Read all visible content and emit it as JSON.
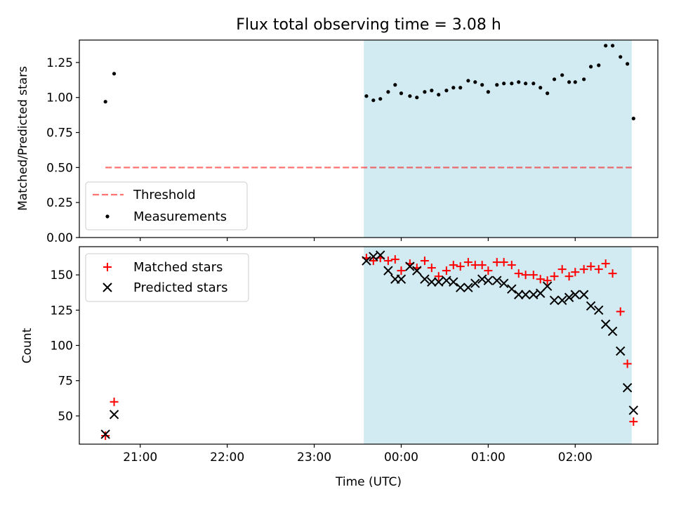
{
  "chart_data": {
    "title": "Flux total observing time = 3.08 h",
    "xlabel": "Time (UTC)",
    "x_unit": "hours (UTC, continuing past midnight: 24 = 00:00 of next day)",
    "xlim": [
      20.3,
      26.95
    ],
    "x_ticks": [
      {
        "value": 21,
        "label": "21:00"
      },
      {
        "value": 22,
        "label": "22:00"
      },
      {
        "value": 23,
        "label": "23:00"
      },
      {
        "value": 24,
        "label": "00:00"
      },
      {
        "value": 25,
        "label": "01:00"
      },
      {
        "value": 26,
        "label": "02:00"
      }
    ],
    "shaded_span": {
      "x0": 23.57,
      "x1": 26.65,
      "color": "#add8e6"
    },
    "panels": [
      {
        "type": "scatter",
        "ylabel": "Matched/Predicted stars",
        "ylim": [
          0.0,
          1.41
        ],
        "yticks": [
          "0.00",
          "0.25",
          "0.50",
          "0.75",
          "1.00",
          "1.25"
        ],
        "ytick_values": [
          0.0,
          0.25,
          0.5,
          0.75,
          1.0,
          1.25
        ],
        "legend_position": "lower-left",
        "series": [
          {
            "name": "Threshold",
            "kind": "dashed-line",
            "color": "#ff0000",
            "x": [
              20.6,
              26.65
            ],
            "y": [
              0.5,
              0.5
            ]
          },
          {
            "name": "Measurements",
            "kind": "dot",
            "color": "#000000",
            "x": [
              20.6,
              20.7,
              23.6,
              23.68,
              23.76,
              23.85,
              23.93,
              24.0,
              24.1,
              24.18,
              24.27,
              24.35,
              24.43,
              24.52,
              24.6,
              24.68,
              24.77,
              24.85,
              24.93,
              25.0,
              25.1,
              25.18,
              25.27,
              25.35,
              25.43,
              25.52,
              25.6,
              25.68,
              25.76,
              25.85,
              25.93,
              26.0,
              26.1,
              26.18,
              26.27,
              26.35,
              26.43,
              26.52,
              26.6,
              26.67
            ],
            "y": [
              0.97,
              1.17,
              1.01,
              0.98,
              0.99,
              1.04,
              1.09,
              1.03,
              1.01,
              1.0,
              1.04,
              1.05,
              1.02,
              1.05,
              1.07,
              1.07,
              1.12,
              1.11,
              1.09,
              1.04,
              1.09,
              1.1,
              1.1,
              1.11,
              1.1,
              1.1,
              1.07,
              1.03,
              1.13,
              1.16,
              1.11,
              1.11,
              1.13,
              1.22,
              1.23,
              1.37,
              1.37,
              1.29,
              1.24,
              0.85
            ]
          }
        ]
      },
      {
        "type": "scatter",
        "ylabel": "Count",
        "ylim": [
          30,
          170
        ],
        "yticks": [
          "50",
          "75",
          "100",
          "125",
          "150"
        ],
        "ytick_values": [
          50,
          75,
          100,
          125,
          150
        ],
        "legend_position": "upper-left",
        "series": [
          {
            "name": "Matched stars",
            "kind": "plus",
            "color": "#ff0000",
            "x": [
              20.6,
              20.7,
              23.6,
              23.68,
              23.76,
              23.85,
              23.93,
              24.0,
              24.1,
              24.18,
              24.27,
              24.35,
              24.43,
              24.52,
              24.6,
              24.68,
              24.77,
              24.85,
              24.93,
              25.0,
              25.1,
              25.18,
              25.27,
              25.35,
              25.43,
              25.52,
              25.6,
              25.68,
              25.76,
              25.85,
              25.93,
              26.0,
              26.1,
              26.18,
              26.27,
              26.35,
              26.43,
              26.52,
              26.6,
              26.67
            ],
            "y": [
              36,
              60,
              162,
              160,
              162,
              160,
              161,
              153,
              158,
              155,
              160,
              155,
              149,
              153,
              157,
              156,
              159,
              157,
              157,
              153,
              159,
              159,
              157,
              151,
              150,
              150,
              147,
              146,
              149,
              154,
              149,
              152,
              154,
              156,
              154,
              158,
              151,
              124,
              87,
              46
            ]
          },
          {
            "name": "Predicted stars",
            "kind": "cross",
            "color": "#000000",
            "x": [
              20.6,
              20.7,
              23.6,
              23.68,
              23.76,
              23.85,
              23.93,
              24.0,
              24.1,
              24.18,
              24.27,
              24.35,
              24.43,
              24.52,
              24.6,
              24.68,
              24.77,
              24.85,
              24.93,
              25.0,
              25.1,
              25.18,
              25.27,
              25.35,
              25.43,
              25.52,
              25.6,
              25.68,
              25.76,
              25.85,
              25.93,
              26.0,
              26.1,
              26.18,
              26.27,
              26.35,
              26.43,
              26.52,
              26.6,
              26.67
            ],
            "y": [
              37,
              51,
              160,
              163,
              164,
              153,
              147,
              147,
              156,
              153,
              147,
              145,
              145,
              146,
              145,
              141,
              141,
              144,
              147,
              146,
              146,
              144,
              140,
              136,
              136,
              136,
              137,
              142,
              132,
              132,
              134,
              136,
              136,
              128,
              125,
              115,
              110,
              96,
              70,
              54
            ]
          }
        ]
      }
    ]
  }
}
